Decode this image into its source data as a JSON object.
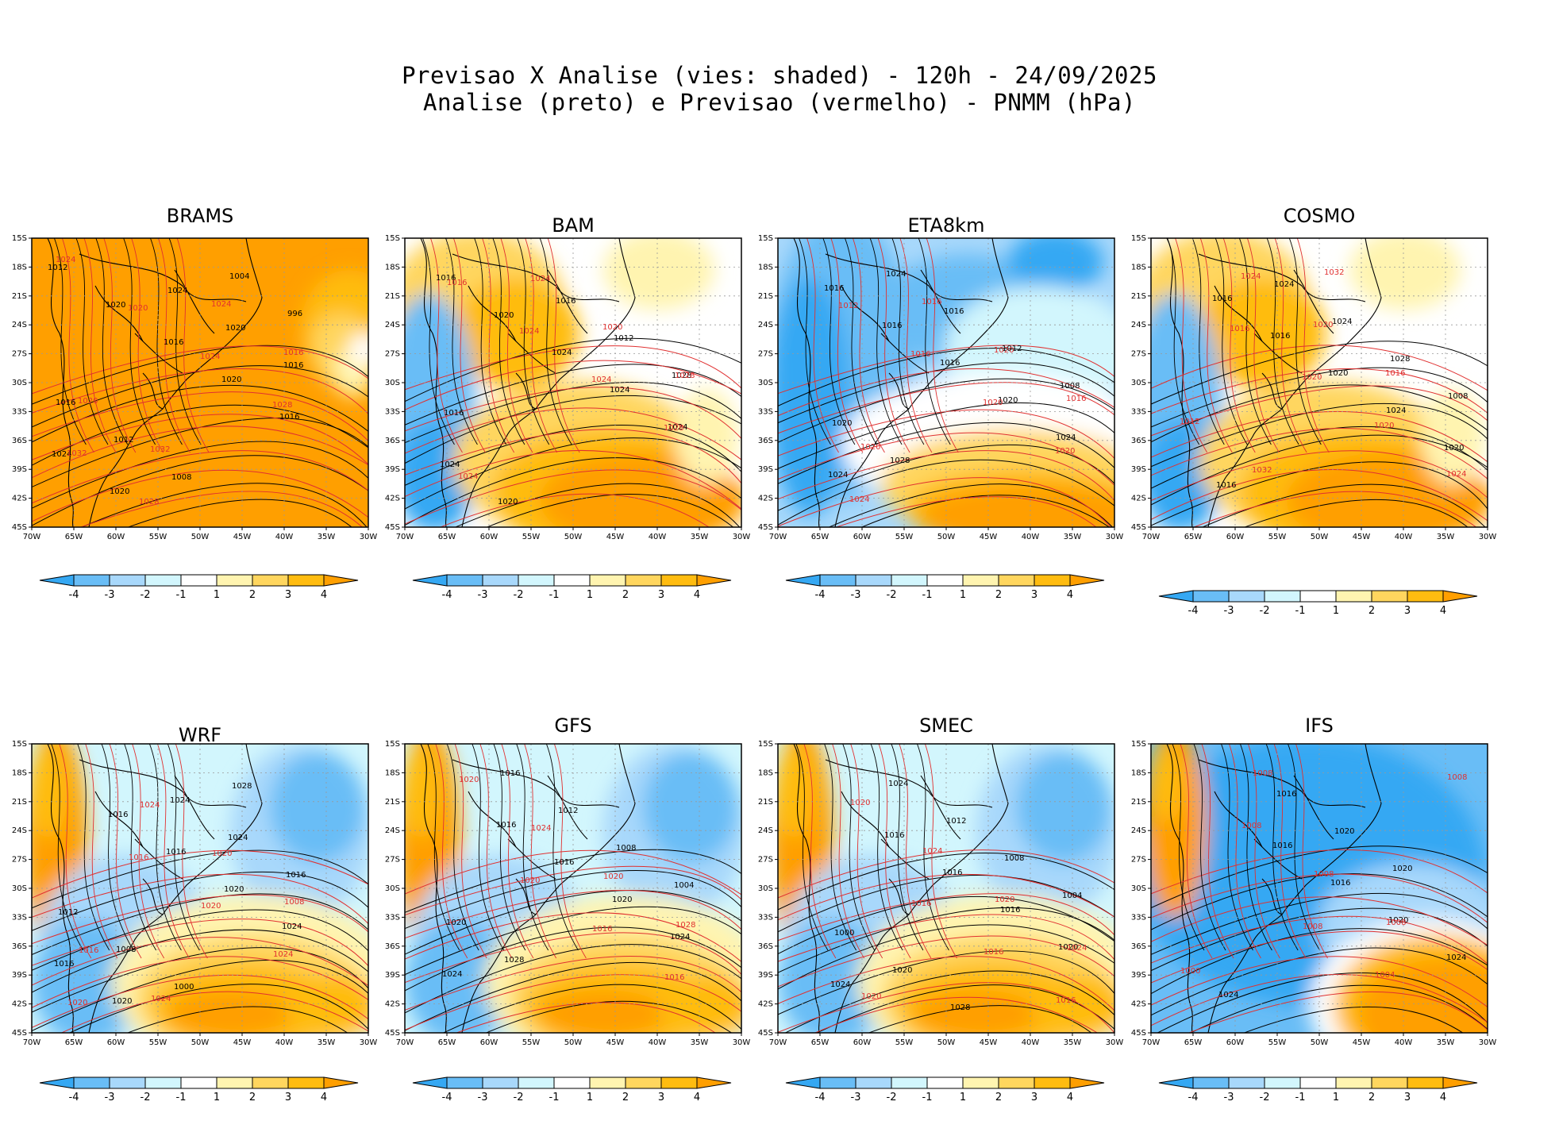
{
  "header": {
    "title_line1": "Previsao X Analise (vies: shaded) - 120h - 24/09/2025",
    "title_line2": "Analise (preto) e Previsao (vermelho) - PNMM (hPa)"
  },
  "axes": {
    "lat_labels": [
      "15S",
      "18S",
      "21S",
      "24S",
      "27S",
      "30S",
      "33S",
      "36S",
      "39S",
      "42S",
      "45S"
    ],
    "lon_labels": [
      "70W",
      "65W",
      "60W",
      "55W",
      "50W",
      "45W",
      "40W",
      "35W",
      "30W"
    ]
  },
  "colorbar": {
    "labels": [
      "-4",
      "-3",
      "-2",
      "-1",
      "1",
      "2",
      "3",
      "4"
    ],
    "colors": [
      "#35a8f3",
      "#69bdf6",
      "#a8d8fb",
      "#d2f6fd",
      "#ffffff",
      "#fff4b0",
      "#ffd65e",
      "#ffbc10",
      "#ff9f00"
    ]
  },
  "colors": {
    "analysis_contour": "#000000",
    "forecast_contour": "#e03030",
    "grid": "#999999"
  },
  "panels": [
    {
      "model": "BRAMS",
      "bias_regime": "positive",
      "black_labels": [
        "1012",
        "1020",
        "1016",
        "1020",
        "1016",
        "1024",
        "1020",
        "1024",
        "1020",
        "1016",
        "1016",
        "1012",
        "1008",
        "1004",
        "996"
      ],
      "red_labels": [
        "1024",
        "1020",
        "1024",
        "1028",
        "1032",
        "1028",
        "1024",
        "1016",
        "1020",
        "1032"
      ]
    },
    {
      "model": "BAM",
      "bias_regime": "mixed",
      "black_labels": [
        "1016",
        "1020",
        "1024",
        "1024",
        "1024",
        "1024",
        "1020",
        "1016",
        "1012",
        "1028",
        "1016"
      ],
      "red_labels": [
        "1016",
        "1024",
        "1024",
        "1028",
        "1024",
        "1024",
        "1020",
        "1028"
      ]
    },
    {
      "model": "ETA8km",
      "bias_regime": "negative",
      "black_labels": [
        "1016",
        "1016",
        "1016",
        "1020",
        "1024",
        "1024",
        "1024",
        "1016",
        "1012",
        "1008",
        "1020",
        "1028"
      ],
      "red_labels": [
        "1012",
        "1016",
        "1020",
        "1020",
        "1024",
        "1016",
        "1020",
        "1016",
        "1020"
      ]
    },
    {
      "model": "COSMO",
      "bias_regime": "mixed",
      "black_labels": [
        "1016",
        "1016",
        "1020",
        "1024",
        "1020",
        "1016",
        "1024",
        "1024",
        "1028",
        "1008"
      ],
      "red_labels": [
        "1016",
        "1020",
        "1020",
        "1024",
        "1024",
        "1020",
        "1016",
        "1012",
        "1032",
        "1032"
      ]
    },
    {
      "model": "WRF",
      "bias_regime": "negative-south-positive",
      "black_labels": [
        "1016",
        "1016",
        "1020",
        "1024",
        "1016",
        "1020",
        "1024",
        "1024",
        "1016",
        "1012",
        "1008",
        "1000",
        "1028"
      ],
      "red_labels": [
        "1016",
        "1020",
        "1024",
        "1020",
        "1024",
        "1020",
        "1008",
        "1016",
        "1024"
      ]
    },
    {
      "model": "GFS",
      "bias_regime": "negative-south-positive",
      "black_labels": [
        "1016",
        "1016",
        "1020",
        "1024",
        "1024",
        "1016",
        "1012",
        "1008",
        "1004",
        "1020",
        "1028"
      ],
      "red_labels": [
        "1020",
        "1016",
        "1016",
        "1020",
        "1024",
        "1020",
        "1028"
      ]
    },
    {
      "model": "SMEC",
      "bias_regime": "negative-south-positive",
      "black_labels": [
        "1016",
        "1016",
        "1016",
        "1020",
        "1024",
        "1024",
        "1012",
        "1008",
        "1004",
        "1000",
        "1020",
        "1028"
      ],
      "red_labels": [
        "1016",
        "1016",
        "1016",
        "1020",
        "1024",
        "1020",
        "1024",
        "1020"
      ]
    },
    {
      "model": "IFS",
      "bias_regime": "negative-south-strong-positive",
      "black_labels": [
        "1016",
        "1016",
        "1020",
        "1024",
        "1024",
        "1016",
        "1020",
        "1020"
      ],
      "red_labels": [
        "1008",
        "1004",
        "1008",
        "1008",
        "1008",
        "1008",
        "1000",
        "1008"
      ]
    }
  ]
}
